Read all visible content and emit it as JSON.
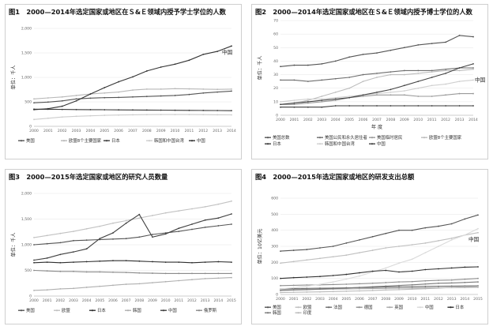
{
  "chart_data": [
    {
      "type": "line",
      "title": "图1　2000—2014年选定国家或地区在Ｓ&Ｅ领域内授予学士学位的人数",
      "xlabel": "",
      "ylabel": "单位：千人",
      "x": [
        "2000",
        "2001",
        "2002",
        "2003",
        "2004",
        "2005",
        "2006",
        "2007",
        "2008",
        "2009",
        "2010",
        "2011",
        "2012",
        "2013",
        "2014"
      ],
      "yticks": [
        "0",
        "500",
        "1,000",
        "1,500",
        "2,000"
      ],
      "ylim": [
        0,
        2000
      ],
      "annotation": "中国",
      "annotation_series": 4,
      "series": [
        {
          "name": "美国",
          "color": "#555555",
          "values": [
            480,
            495,
            520,
            560,
            575,
            585,
            590,
            600,
            610,
            620,
            630,
            650,
            680,
            700,
            720
          ]
        },
        {
          "name": "欧盟8个主要国家",
          "color": "#b8b8b8",
          "values": [
            560,
            580,
            600,
            630,
            660,
            680,
            700,
            740,
            760,
            760,
            770,
            765,
            760,
            755,
            760
          ]
        },
        {
          "name": "日本",
          "color": "#3a3a3a",
          "values": [
            350,
            348,
            345,
            342,
            340,
            338,
            336,
            334,
            332,
            330,
            328,
            326,
            324,
            322,
            320
          ]
        },
        {
          "name": "韩国和中国台湾",
          "color": "#cccccc",
          "values": [
            140,
            165,
            190,
            205,
            215,
            225,
            230,
            235,
            238,
            240,
            240,
            240,
            238,
            236,
            234
          ]
        },
        {
          "name": "中国",
          "color": "#333333",
          "values": [
            340,
            360,
            410,
            520,
            660,
            790,
            910,
            1010,
            1130,
            1210,
            1270,
            1350,
            1470,
            1530,
            1640
          ]
        }
      ]
    },
    {
      "type": "line",
      "title": "图2　2000—2014年选定国家或地区在Ｓ&Ｅ领域内授予博士学位的人数",
      "xlabel": "年 度",
      "ylabel": "单位：千人",
      "x": [
        "2000",
        "2001",
        "2002",
        "2003",
        "2004",
        "2005",
        "2006",
        "2007",
        "2008",
        "2009",
        "2010",
        "2011",
        "2012",
        "2013",
        "2014"
      ],
      "yticks": [
        "0",
        "10",
        "20",
        "30",
        "40",
        "50",
        "60",
        "70"
      ],
      "ylim": [
        0,
        70
      ],
      "annotation": "中国",
      "annotation_series": 5,
      "series": [
        {
          "name": "美国总数",
          "color": "#555555",
          "values": [
            36,
            37,
            37,
            38,
            40,
            43,
            45,
            46,
            48,
            50,
            52,
            53,
            54,
            59,
            58
          ]
        },
        {
          "name": "美国公民和永久居住者",
          "color": "#6e6e6e",
          "values": [
            26,
            26,
            25,
            26,
            27,
            28,
            30,
            31,
            32,
            33,
            33,
            33,
            34,
            35,
            35
          ]
        },
        {
          "name": "美国临时居民",
          "color": "#9a9a9a",
          "values": [
            8,
            8,
            9,
            10,
            11,
            13,
            14,
            15,
            15,
            15,
            14,
            14,
            15,
            16,
            16
          ]
        },
        {
          "name": "欧盟8个主要国家",
          "color": "#bdbdbd",
          "values": [
            8,
            9,
            11,
            14,
            17,
            20,
            25,
            28,
            30,
            30,
            31,
            32,
            33,
            33,
            34
          ]
        },
        {
          "name": "日本",
          "color": "#3a3a3a",
          "values": [
            6,
            6,
            6,
            6,
            7,
            7,
            7,
            7,
            7,
            7,
            7,
            7,
            7,
            7,
            7
          ]
        },
        {
          "name": "韩国和中国台湾",
          "color": "#d0d0d0",
          "values": [
            10,
            11,
            12,
            12,
            13,
            14,
            15,
            16,
            17,
            18,
            20,
            22,
            23,
            25,
            26
          ]
        },
        {
          "name": "中国",
          "color": "#444444",
          "values": [
            8,
            9,
            10,
            11,
            12,
            13,
            15,
            17,
            19,
            22,
            25,
            28,
            31,
            35,
            38
          ]
        }
      ]
    },
    {
      "type": "line",
      "title": "图3　2000—2015年选定国家或地区的研究人员数量",
      "xlabel": "",
      "ylabel": "单位：千人",
      "x": [
        "2000",
        "2001",
        "2002",
        "2003",
        "2004",
        "2005",
        "2006",
        "2007",
        "2008",
        "2009",
        "2010",
        "2011",
        "2012",
        "2013",
        "2014",
        "2015"
      ],
      "yticks": [
        "0",
        "500",
        "1,000",
        "1,500",
        "2,000"
      ],
      "ylim": [
        0,
        2000
      ],
      "annotation": "",
      "series": [
        {
          "name": "美国",
          "color": "#555555",
          "values": [
            1000,
            1020,
            1040,
            1080,
            1090,
            1100,
            1110,
            1120,
            1150,
            1200,
            1230,
            1260,
            1300,
            1340,
            1370,
            1400
          ]
        },
        {
          "name": "欧盟",
          "color": "#c2c2c2",
          "values": [
            1140,
            1180,
            1220,
            1260,
            1310,
            1360,
            1420,
            1470,
            1520,
            1570,
            1620,
            1660,
            1700,
            1740,
            1790,
            1850
          ]
        },
        {
          "name": "日本",
          "color": "#2f2f2f",
          "values": [
            650,
            660,
            650,
            660,
            670,
            680,
            690,
            690,
            680,
            670,
            660,
            660,
            650,
            660,
            670,
            660
          ]
        },
        {
          "name": "韩国",
          "color": "#b0b0b0",
          "values": [
            110,
            120,
            140,
            150,
            170,
            190,
            210,
            230,
            240,
            260,
            280,
            300,
            320,
            340,
            350,
            360
          ]
        },
        {
          "name": "中国",
          "color": "#404040",
          "values": [
            700,
            740,
            810,
            860,
            920,
            1120,
            1230,
            1420,
            1590,
            1150,
            1210,
            1320,
            1400,
            1480,
            1520,
            1600
          ]
        },
        {
          "name": "俄罗斯",
          "color": "#8a8a8a",
          "values": [
            500,
            490,
            480,
            480,
            470,
            470,
            465,
            460,
            450,
            445,
            440,
            440,
            440,
            440,
            440,
            440
          ]
        }
      ]
    },
    {
      "type": "line",
      "title": "图4　2000—2015年选定国家或地区的研发支出总额",
      "xlabel": "",
      "ylabel": "单位：10亿美元",
      "x": [
        "2000",
        "2001",
        "2002",
        "2003",
        "2004",
        "2005",
        "2006",
        "2007",
        "2008",
        "2009",
        "2010",
        "2011",
        "2012",
        "2013",
        "2014",
        "2015"
      ],
      "yticks": [
        "0",
        "100",
        "200",
        "300",
        "400",
        "500",
        "600"
      ],
      "ylim": [
        0,
        600
      ],
      "annotation": "中国",
      "annotation_series": 5,
      "series": [
        {
          "name": "美国",
          "color": "#555555",
          "values": [
            270,
            275,
            280,
            290,
            300,
            320,
            340,
            360,
            380,
            400,
            400,
            415,
            425,
            440,
            470,
            495
          ]
        },
        {
          "name": "欧盟",
          "color": "#c0c0c0",
          "values": [
            195,
            205,
            215,
            225,
            235,
            245,
            260,
            275,
            290,
            300,
            310,
            320,
            335,
            350,
            370,
            385
          ]
        },
        {
          "name": "法国",
          "color": "#6a6a6a",
          "values": [
            35,
            37,
            38,
            39,
            40,
            42,
            43,
            44,
            46,
            47,
            48,
            50,
            51,
            52,
            53,
            54
          ]
        },
        {
          "name": "德国",
          "color": "#909090",
          "values": [
            55,
            57,
            59,
            60,
            62,
            64,
            67,
            70,
            74,
            78,
            80,
            85,
            88,
            90,
            95,
            100
          ]
        },
        {
          "name": "英国",
          "color": "#a8a8a8",
          "values": [
            30,
            31,
            32,
            33,
            34,
            35,
            36,
            37,
            38,
            39,
            40,
            41,
            42,
            43,
            44,
            45
          ]
        },
        {
          "name": "中国",
          "color": "#dadada",
          "values": [
            35,
            42,
            52,
            63,
            78,
            96,
            115,
            140,
            165,
            195,
            220,
            260,
            300,
            340,
            370,
            410
          ]
        },
        {
          "name": "日本",
          "color": "#2f2f2f",
          "values": [
            100,
            105,
            108,
            112,
            118,
            125,
            135,
            145,
            150,
            140,
            145,
            155,
            160,
            165,
            170,
            172
          ]
        },
        {
          "name": "韩国",
          "color": "#7a7a7a",
          "values": [
            25,
            28,
            30,
            33,
            36,
            40,
            44,
            48,
            52,
            56,
            60,
            65,
            70,
            72,
            75,
            78
          ]
        },
        {
          "name": "印度",
          "color": "#bbbbbb",
          "values": [
            12,
            14,
            15,
            16,
            18,
            20,
            22,
            25,
            28,
            30,
            33,
            36,
            40,
            44,
            48,
            50
          ]
        }
      ]
    }
  ]
}
